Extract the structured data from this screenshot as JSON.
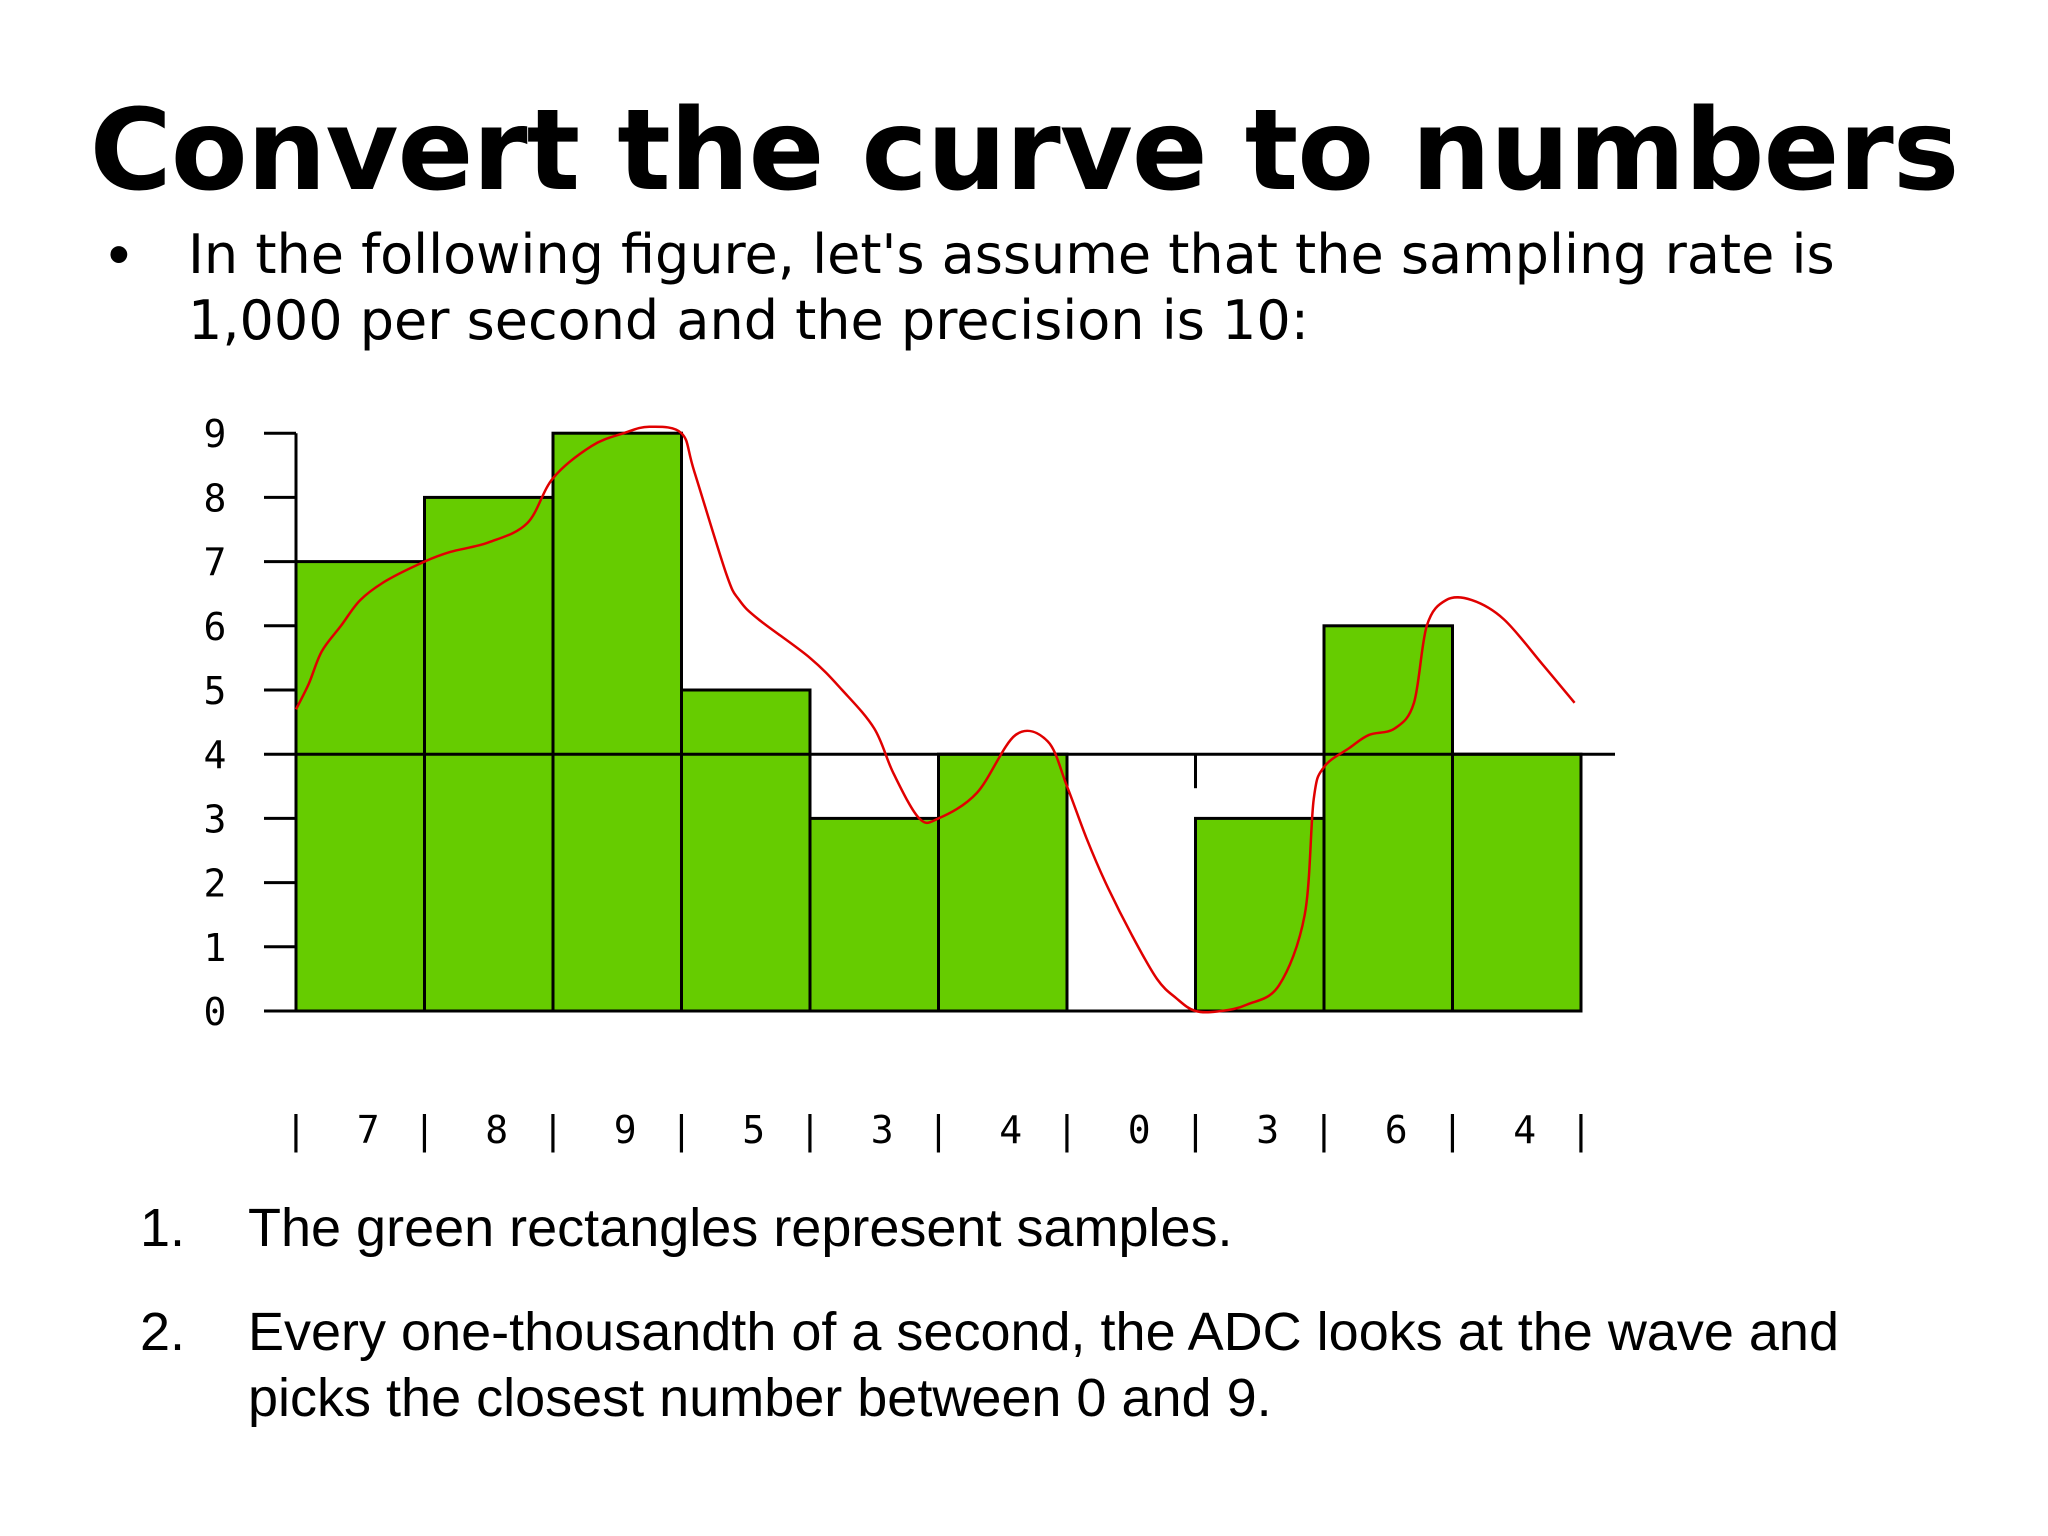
{
  "slide": {
    "title": "Convert the curve to numbers",
    "bullet": "In the following figure, let's assume that the sampling rate is 1,000 per second and the precision is 10:",
    "steps": [
      {
        "num": "1.",
        "text": "The green rectangles represent samples."
      },
      {
        "num": "2.",
        "text": "Every one-thousandth of a second, the ADC looks at the wave and picks the closest number between 0 and 9."
      }
    ]
  },
  "colors": {
    "bar_fill": "#66cc00",
    "curve": "#e00000",
    "axis": "#000000"
  },
  "chart_data": {
    "type": "bar",
    "title": "",
    "xlabel": "",
    "ylabel": "",
    "ylim": [
      0,
      9
    ],
    "y_ticks": [
      "0",
      "1",
      "2",
      "3",
      "4",
      "5",
      "6",
      "7",
      "8",
      "9"
    ],
    "categories": [
      "7",
      "8",
      "9",
      "5",
      "3",
      "4",
      "0",
      "3",
      "6",
      "4"
    ],
    "values": [
      7,
      8,
      9,
      5,
      3,
      4,
      0,
      3,
      6,
      4
    ],
    "bottom_row_separator": "|",
    "reference_line": {
      "y": 4
    },
    "curve": {
      "description_type": "line",
      "color_key": "curve",
      "x": [
        0.0,
        0.1,
        0.2,
        0.35,
        0.5,
        0.7,
        1.0,
        1.2,
        1.5,
        1.8,
        2.0,
        2.3,
        2.55,
        2.75,
        3.0,
        3.1,
        3.35,
        3.45,
        3.6,
        4.0,
        4.25,
        4.5,
        4.65,
        4.85,
        5.0,
        5.3,
        5.6,
        5.85,
        6.0,
        6.15,
        6.3,
        6.5,
        6.7,
        6.85,
        7.0,
        7.2,
        7.4,
        7.65,
        7.85,
        7.92,
        8.0,
        8.2,
        8.35,
        8.55,
        8.7,
        8.8,
        8.95,
        9.15,
        9.4,
        9.7,
        9.95
      ],
      "y": [
        4.7,
        5.1,
        5.6,
        6.0,
        6.4,
        6.7,
        7.0,
        7.15,
        7.3,
        7.6,
        8.3,
        8.8,
        9.0,
        9.1,
        9.0,
        8.4,
        6.8,
        6.4,
        6.1,
        5.5,
        5.0,
        4.4,
        3.7,
        3.0,
        3.0,
        3.4,
        4.3,
        4.2,
        3.5,
        2.7,
        2.0,
        1.2,
        0.5,
        0.2,
        0.0,
        0.0,
        0.1,
        0.4,
        1.5,
        3.3,
        3.8,
        4.1,
        4.3,
        4.4,
        4.8,
        6.0,
        6.4,
        6.4,
        6.1,
        5.4,
        4.8
      ]
    }
  }
}
